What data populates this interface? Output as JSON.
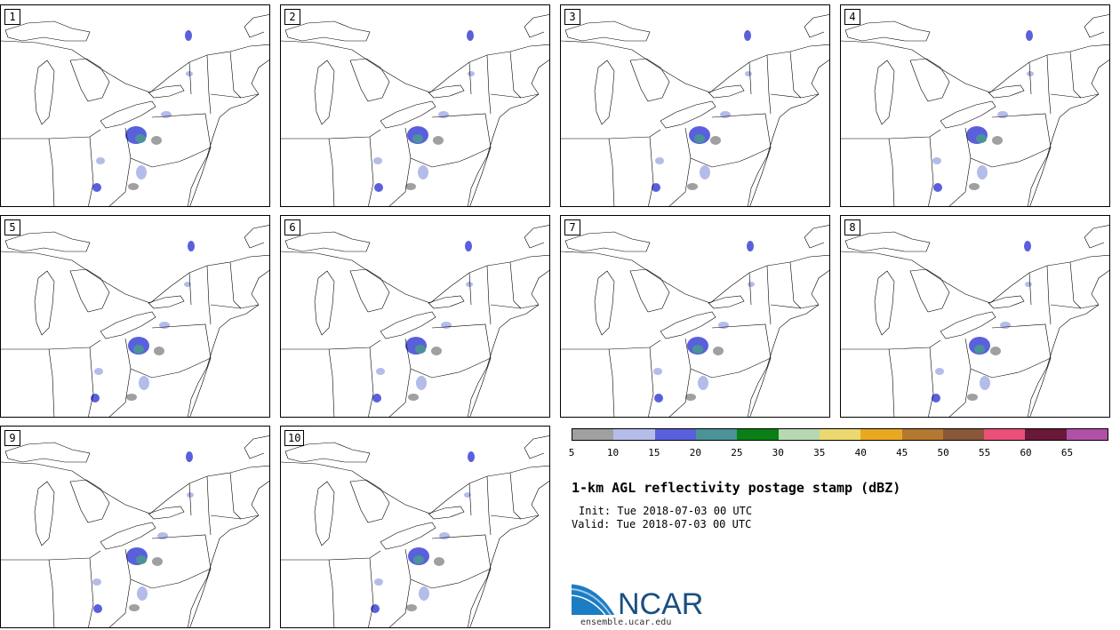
{
  "panels": [
    {
      "label": "1"
    },
    {
      "label": "2"
    },
    {
      "label": "3"
    },
    {
      "label": "4"
    },
    {
      "label": "5"
    },
    {
      "label": "6"
    },
    {
      "label": "7"
    },
    {
      "label": "8"
    },
    {
      "label": "9"
    },
    {
      "label": "10"
    }
  ],
  "colorbar": {
    "colors": [
      "#a0a0a0",
      "#b4bcea",
      "#5a60dc",
      "#4a9398",
      "#0a8014",
      "#b8d8b4",
      "#ecd870",
      "#eaa820",
      "#b47830",
      "#8a5838",
      "#ec5078",
      "#6a1838",
      "#b050a8"
    ],
    "ticks": [
      "5",
      "10",
      "15",
      "20",
      "25",
      "30",
      "35",
      "40",
      "45",
      "50",
      "55",
      "60",
      "65"
    ]
  },
  "title": "1-km AGL reflectivity postage stamp (dBZ)",
  "init": "Init: Tue 2018-07-03 00 UTC",
  "valid": "Valid: Tue 2018-07-03 00 UTC",
  "logo": {
    "text": "NCAR",
    "url": "ensemble.ucar.edu",
    "color": "#1a4f80"
  }
}
